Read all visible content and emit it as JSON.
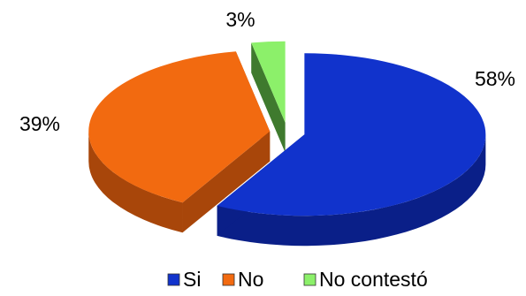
{
  "chart_data": {
    "type": "pie",
    "title": "",
    "categories": [
      "Si",
      "No",
      "No contestó"
    ],
    "values": [
      58,
      39,
      3
    ],
    "data_labels": [
      "58%",
      "39%",
      "3%"
    ],
    "colors": [
      "#1133CC",
      "#F26A10",
      "#8CF06A"
    ],
    "side_colors": [
      "#0A1F88",
      "#A8460A",
      "#3F7A2E"
    ],
    "exploded": true,
    "three_d": true,
    "legend": {
      "placement": "bottom",
      "entries": [
        "Si",
        "No",
        "No contestó"
      ]
    }
  }
}
